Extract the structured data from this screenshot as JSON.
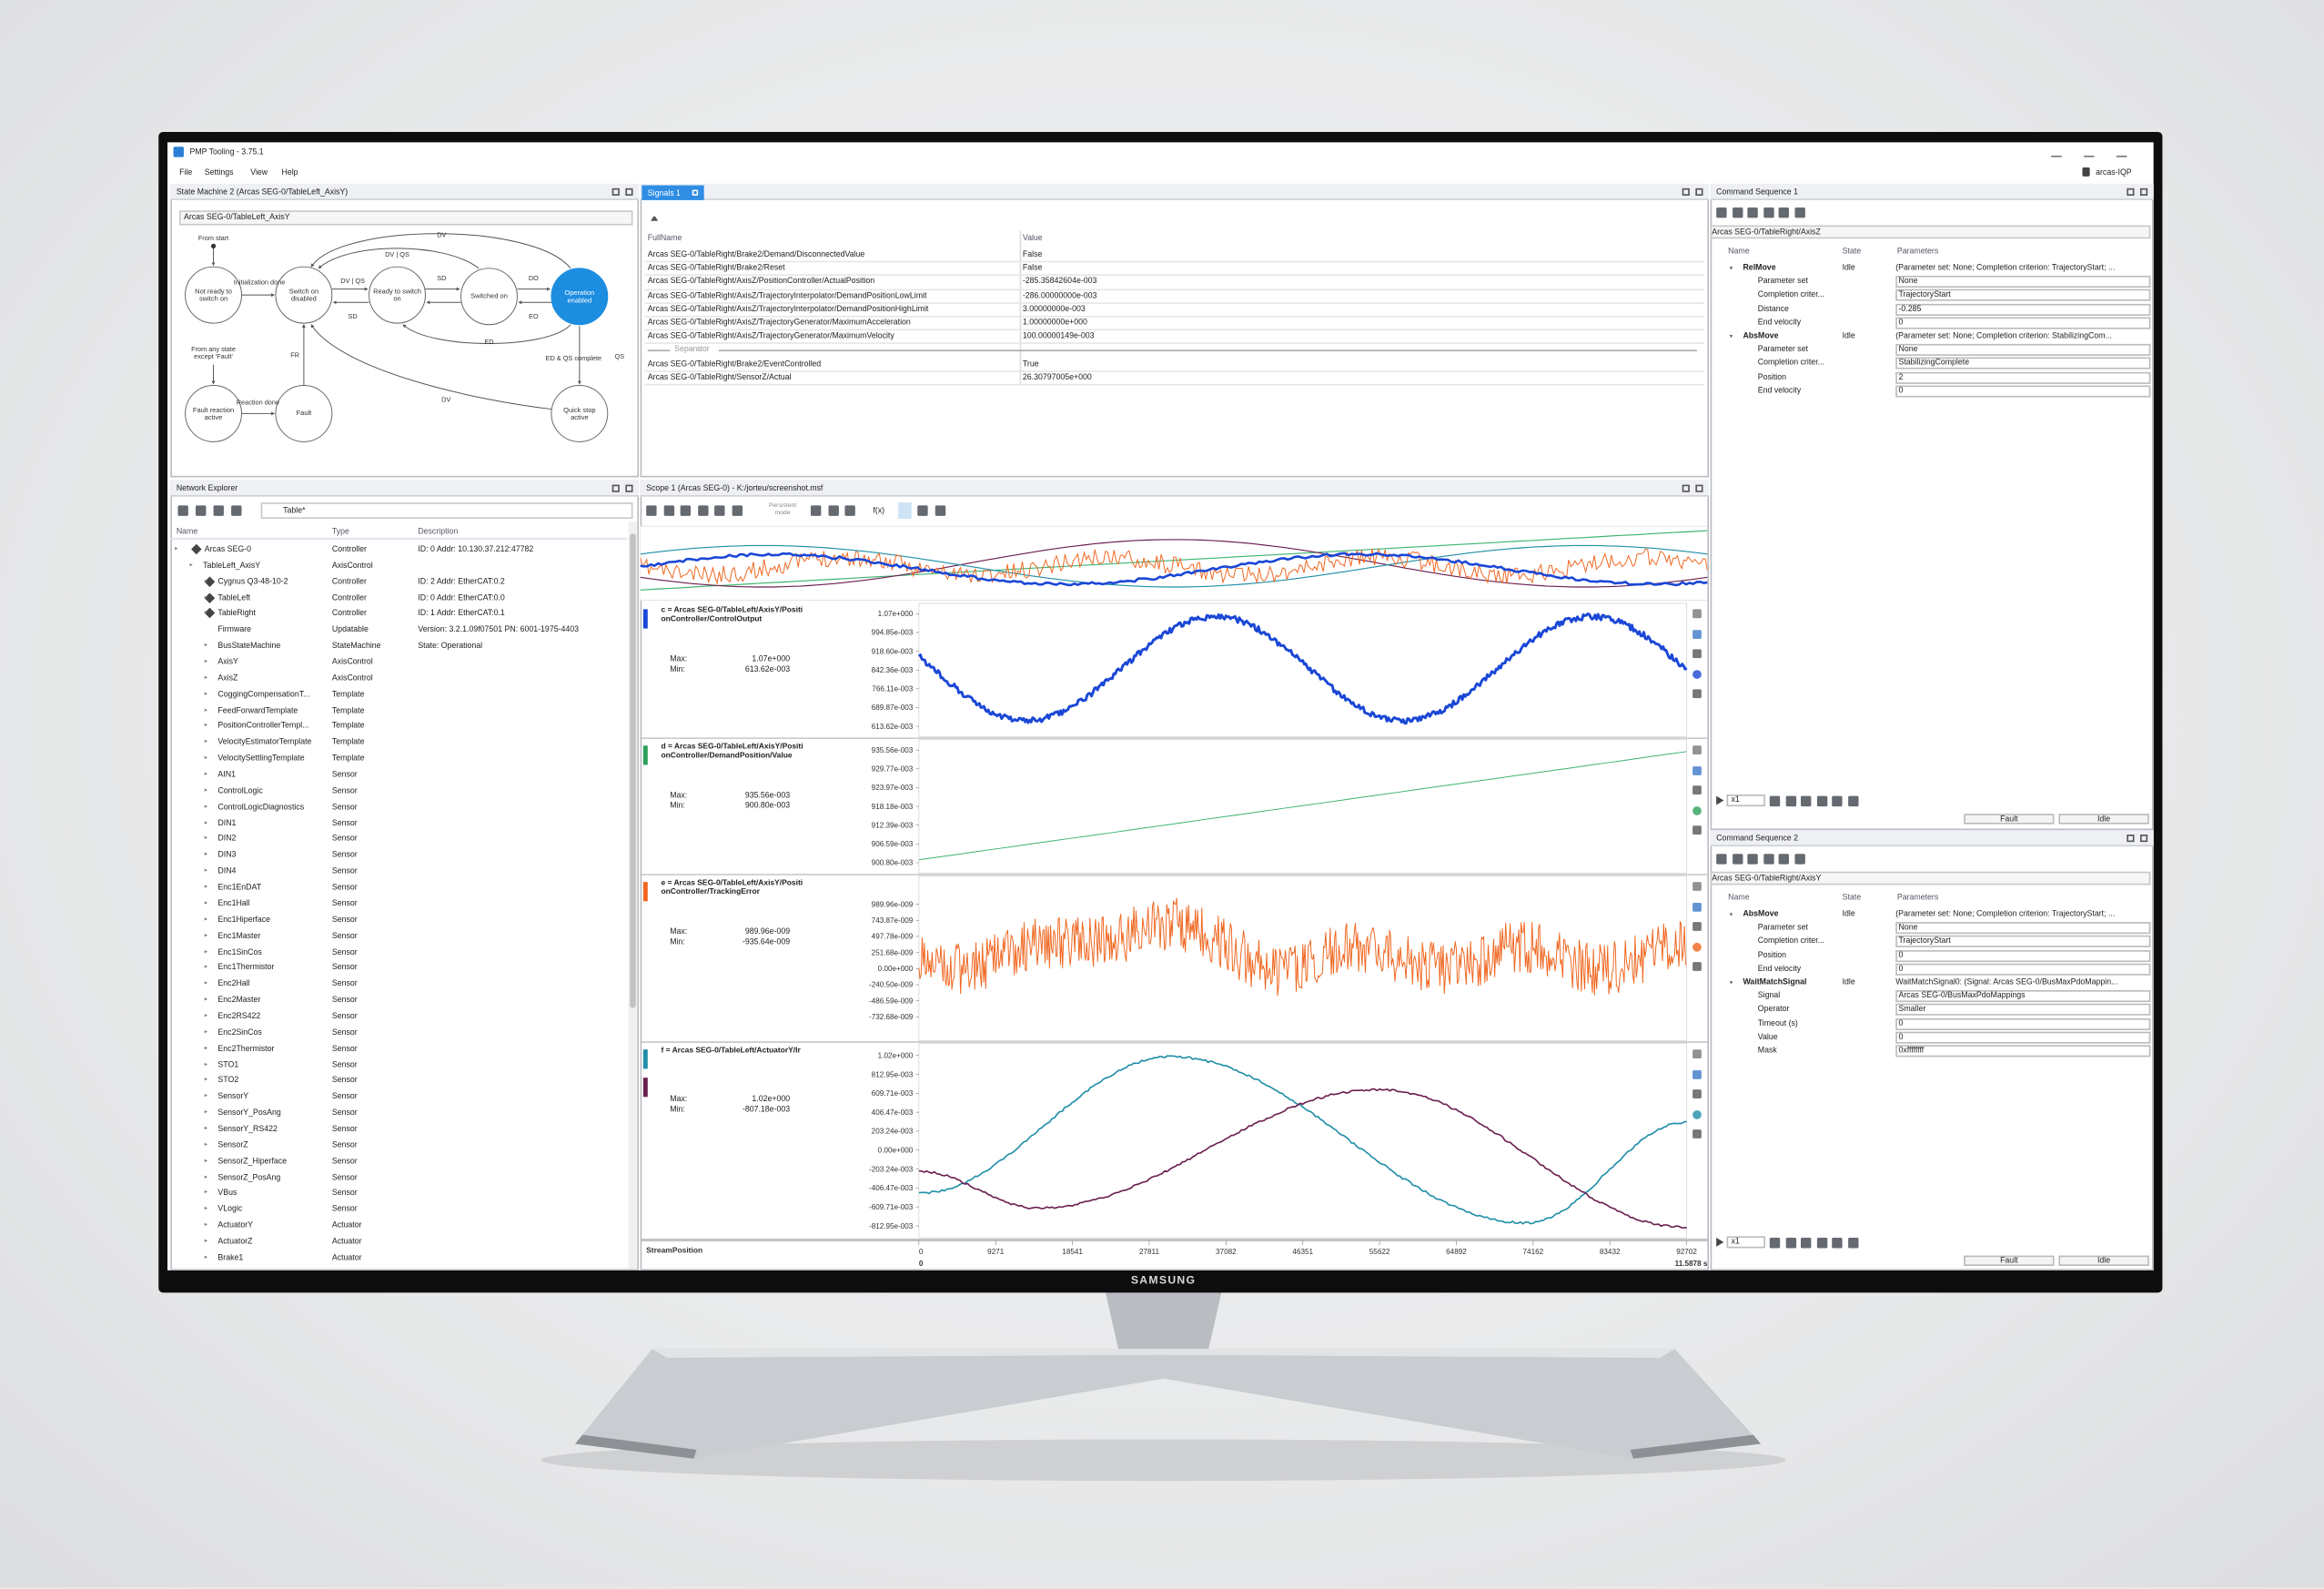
{
  "monitor": {
    "brand": "SAMSUNG"
  },
  "window": {
    "title": "PMP Tooling - 3.75.1",
    "menu": [
      "File",
      "Settings",
      "View",
      "Help"
    ],
    "user": "arcas-IQP"
  },
  "state_machine": {
    "title": "State Machine 2 (Arcas SEG-0/TableLeft_AxisY)",
    "selector": "Arcas SEG-0/TableLeft_AxisY",
    "nodes": [
      "Not ready to switch on",
      "Switch on disabled",
      "Ready to switch on",
      "Switched on",
      "Operation enabled",
      "Fault reaction active",
      "Fault",
      "Quick stop active"
    ],
    "edge_labels": [
      "From start",
      "Initialization done",
      "DV",
      "DV | QS",
      "DV | QS",
      "SD",
      "SD",
      "DO",
      "EO",
      "ED",
      "From any state except 'Fault'",
      "FR",
      "Reaction done",
      "DV",
      "ED & QS complete",
      "QS"
    ]
  },
  "network": {
    "title": "Network Explorer",
    "filter": "Table*",
    "headers": [
      "Name",
      "Type",
      "Description"
    ],
    "rows": [
      [
        "Arcas SEG-0",
        "Controller",
        "ID: 0 Addr: 10.130.37.212:47782"
      ],
      [
        "TableLeft_AxisY",
        "AxisControl",
        ""
      ],
      [
        "Cygnus Q3-48-10-2",
        "Controller",
        "ID: 2 Addr: EtherCAT:0.2"
      ],
      [
        "TableLeft",
        "Controller",
        "ID: 0 Addr: EtherCAT:0.0"
      ],
      [
        "TableRight",
        "Controller",
        "ID: 1 Addr: EtherCAT:0.1"
      ],
      [
        "Firmware",
        "Updatable",
        "Version: 3.2.1.09f07501 PN: 6001-1975-4403"
      ],
      [
        "BusStateMachine",
        "StateMachine",
        "State: Operational"
      ],
      [
        "AxisY",
        "AxisControl",
        ""
      ],
      [
        "AxisZ",
        "AxisControl",
        ""
      ],
      [
        "CoggingCompensationT...",
        "Template",
        ""
      ],
      [
        "FeedForwardTemplate",
        "Template",
        ""
      ],
      [
        "PositionControllerTempl...",
        "Template",
        ""
      ],
      [
        "VelocityEstimatorTemplate",
        "Template",
        ""
      ],
      [
        "VelocitySettlingTemplate",
        "Template",
        ""
      ],
      [
        "AIN1",
        "Sensor",
        ""
      ],
      [
        "ControlLogic",
        "Sensor",
        ""
      ],
      [
        "ControlLogicDiagnostics",
        "Sensor",
        ""
      ],
      [
        "DIN1",
        "Sensor",
        ""
      ],
      [
        "DIN2",
        "Sensor",
        ""
      ],
      [
        "DIN3",
        "Sensor",
        ""
      ],
      [
        "DIN4",
        "Sensor",
        ""
      ],
      [
        "Enc1EnDAT",
        "Sensor",
        ""
      ],
      [
        "Enc1Hall",
        "Sensor",
        ""
      ],
      [
        "Enc1Hiperface",
        "Sensor",
        ""
      ],
      [
        "Enc1Master",
        "Sensor",
        ""
      ],
      [
        "Enc1SinCos",
        "Sensor",
        ""
      ],
      [
        "Enc1Thermistor",
        "Sensor",
        ""
      ],
      [
        "Enc2Hall",
        "Sensor",
        ""
      ],
      [
        "Enc2Master",
        "Sensor",
        ""
      ],
      [
        "Enc2RS422",
        "Sensor",
        ""
      ],
      [
        "Enc2SinCos",
        "Sensor",
        ""
      ],
      [
        "Enc2Thermistor",
        "Sensor",
        ""
      ],
      [
        "STO1",
        "Sensor",
        ""
      ],
      [
        "STO2",
        "Sensor",
        ""
      ],
      [
        "SensorY",
        "Sensor",
        ""
      ],
      [
        "SensorY_PosAng",
        "Sensor",
        ""
      ],
      [
        "SensorY_RS422",
        "Sensor",
        ""
      ],
      [
        "SensorZ",
        "Sensor",
        ""
      ],
      [
        "SensorZ_Hiperface",
        "Sensor",
        ""
      ],
      [
        "SensorZ_PosAng",
        "Sensor",
        ""
      ],
      [
        "VBus",
        "Sensor",
        ""
      ],
      [
        "VLogic",
        "Sensor",
        ""
      ],
      [
        "ActuatorY",
        "Actuator",
        ""
      ],
      [
        "ActuatorZ",
        "Actuator",
        ""
      ],
      [
        "Brake1",
        "Actuator",
        ""
      ]
    ]
  },
  "signals": {
    "tab": "Signals 1",
    "headers": [
      "FullName",
      "Value"
    ],
    "separator": "Separator",
    "rows": [
      [
        "Arcas SEG-0/TableRight/Brake2/Demand/DisconnectedValue",
        "False"
      ],
      [
        "Arcas SEG-0/TableRight/Brake2/Reset",
        "False"
      ],
      [
        "Arcas SEG-0/TableRight/AxisZ/PositionController/ActualPosition",
        "-285.35842604e-003"
      ],
      [
        "Arcas SEG-0/TableRight/AxisZ/TrajectoryInterpolator/DemandPositionLowLimit",
        "-286.00000000e-003"
      ],
      [
        "Arcas SEG-0/TableRight/AxisZ/TrajectoryInterpolator/DemandPositionHighLimit",
        "3.00000000e-003"
      ],
      [
        "Arcas SEG-0/TableRight/AxisZ/TrajectoryGenerator/MaximumAcceleration",
        "1.00000000e+000"
      ],
      [
        "Arcas SEG-0/TableRight/AxisZ/TrajectoryGenerator/MaximumVelocity",
        "100.00000149e-003"
      ],
      [
        "Arcas SEG-0/TableRight/Brake2/EventControlled",
        "True"
      ],
      [
        "Arcas SEG-0/TableRight/SensorZ/Actual",
        "26.30797005e+000"
      ]
    ]
  },
  "scope": {
    "title": "Scope 1 (Arcas SEG-0) - K:/jorteu/screenshot.msf",
    "persistent": "Persistent mode",
    "fx": "f(x)",
    "max_label": "Max:",
    "min_label": "Min:",
    "channels": [
      {
        "label": "c = Arcas SEG-0/TableLeft/AxisY/PositionController/ControlOutput",
        "max": "1.07e+000",
        "min": "613.62e-003",
        "ticks": [
          "1.07e+000",
          "994.85e-003",
          "918.60e-003",
          "842.36e-003",
          "766.11e-003",
          "689.87e-003",
          "613.62e-003"
        ]
      },
      {
        "label": "d = Arcas SEG-0/TableLeft/AxisY/PositionController/DemandPosition/Value",
        "max": "935.56e-003",
        "min": "900.80e-003",
        "ticks": [
          "935.56e-003",
          "929.77e-003",
          "923.97e-003",
          "918.18e-003",
          "912.39e-003",
          "906.59e-003",
          "900.80e-003"
        ]
      },
      {
        "label": "e = Arcas SEG-0/TableLeft/AxisY/PositionController/TrackingError",
        "max": "989.96e-009",
        "min": "-935.64e-009",
        "ticks": [
          "989.96e-009",
          "743.87e-009",
          "497.78e-009",
          "251.68e-009",
          "0.00e+000",
          "-240.50e-009",
          "-486.59e-009",
          "-732.68e-009"
        ]
      },
      {
        "label": "f = Arcas SEG-0/TableLeft/ActuatorY/Ir",
        "max": "1.02e+000",
        "min": "-807.18e-003",
        "ticks": [
          "1.02e+000",
          "812.95e-003",
          "609.71e-003",
          "406.47e-003",
          "203.24e-003",
          "0.00e+000",
          "-203.24e-003",
          "-406.47e-003",
          "-609.71e-003",
          "-812.95e-003"
        ]
      }
    ],
    "x_axis": {
      "label": "StreamPosition",
      "ticks": [
        "0",
        "9271",
        "18541",
        "27811",
        "37082",
        "46351",
        "55622",
        "64892",
        "74162",
        "83432",
        "92702"
      ],
      "start": "0",
      "end": "11.5878 s"
    }
  },
  "command_sequence_1": {
    "title": "Command Sequence 1",
    "selector": "Arcas SEG-0/TableRight/AxisZ",
    "headers": [
      "Name",
      "State",
      "Parameters"
    ],
    "speed": "x1",
    "status": [
      "Fault",
      "Idle"
    ],
    "rows": [
      {
        "name": "RelMove",
        "state": "Idle",
        "parameters": "(Parameter set: None; Completion criterion: TrajectoryStart; ...",
        "children": [
          [
            "Parameter set",
            "None"
          ],
          [
            "Completion criter...",
            "TrajectoryStart"
          ],
          [
            "Distance",
            "-0.285"
          ],
          [
            "End velocity",
            "0"
          ]
        ]
      },
      {
        "name": "AbsMove",
        "state": "Idle",
        "parameters": "(Parameter set: None; Completion criterion: StabilizingCom...",
        "children": [
          [
            "Parameter set",
            "None"
          ],
          [
            "Completion criter...",
            "StabilizingComplete"
          ],
          [
            "Position",
            "2"
          ],
          [
            "End velocity",
            "0"
          ]
        ]
      }
    ]
  },
  "command_sequence_2": {
    "title": "Command Sequence 2",
    "selector": "Arcas SEG-0/TableRight/AxisY",
    "headers": [
      "Name",
      "State",
      "Parameters"
    ],
    "speed": "x1",
    "status": [
      "Fault",
      "Idle"
    ],
    "rows": [
      {
        "name": "AbsMove",
        "state": "Idle",
        "parameters": "(Parameter set: None; Completion criterion: TrajectoryStart; ...",
        "children": [
          [
            "Parameter set",
            "None"
          ],
          [
            "Completion criter...",
            "TrajectoryStart"
          ],
          [
            "Position",
            "0"
          ],
          [
            "End velocity",
            "0"
          ]
        ]
      },
      {
        "name": "WaitMatchSignal",
        "state": "Idle",
        "parameters": "WaitMatchSignal0: (Signal: Arcas SEG-0/BusMaxPdoMappin...",
        "children": [
          [
            "Signal",
            "Arcas SEG-0/BusMaxPdoMappings"
          ],
          [
            "Operator",
            "Smaller"
          ],
          [
            "Timeout (s)",
            "0"
          ],
          [
            "Value",
            "0"
          ],
          [
            "Mask",
            "0xffffffff"
          ]
        ]
      }
    ]
  }
}
